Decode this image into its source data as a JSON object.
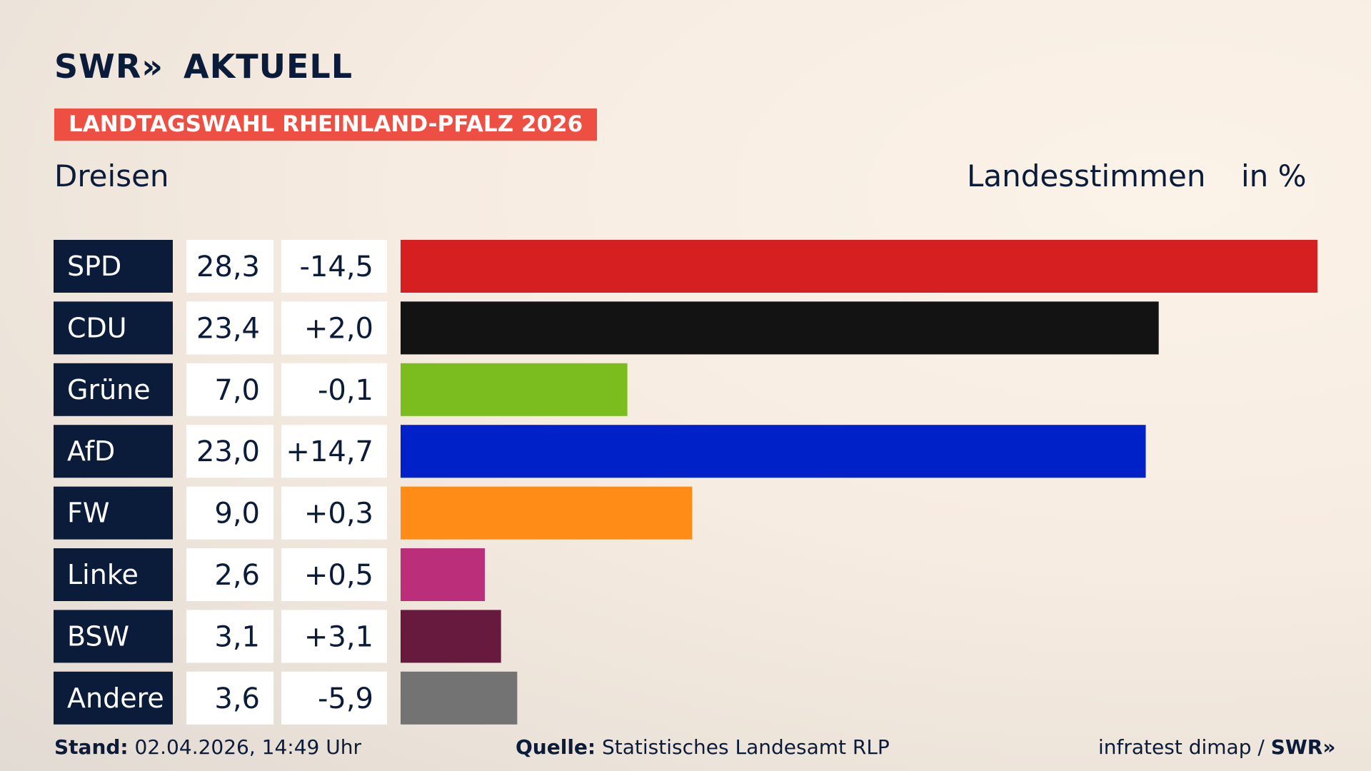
{
  "header": {
    "logo": "SWR",
    "logo_chevrons": "»",
    "brand": "AKTUELL",
    "banner": "LANDTAGSWAHL RHEINLAND-PFALZ 2026",
    "region": "Dreisen",
    "metric": "Landesstimmen",
    "unit": "in %"
  },
  "footer": {
    "stand_label": "Stand:",
    "stand_value": "02.04.2026, 14:49 Uhr",
    "quelle_label": "Quelle:",
    "quelle_value": "Statistisches Landesamt RLP",
    "credit": "infratest dimap /",
    "credit_logo": "SWR",
    "credit_chevrons": "»"
  },
  "chart_data": {
    "type": "bar",
    "orientation": "horizontal",
    "categories": [
      "SPD",
      "CDU",
      "Grüne",
      "AfD",
      "FW",
      "Linke",
      "BSW",
      "Andere"
    ],
    "values": [
      28.3,
      23.4,
      7.0,
      23.0,
      9.0,
      2.6,
      3.1,
      3.6
    ],
    "value_labels": [
      "28,3",
      "23,4",
      "7,0",
      "23,0",
      "9,0",
      "2,6",
      "3,1",
      "3,6"
    ],
    "change_labels": [
      "-14,5",
      "+2,0",
      "-0,1",
      "+14,7",
      "+0,3",
      "+0,5",
      "+3,1",
      "-5,9"
    ],
    "colors": [
      "#d61f20",
      "#131313",
      "#7bbd1f",
      "#0021c8",
      "#fe8c16",
      "#bb2e7a",
      "#671a3e",
      "#737373"
    ],
    "xlim": [
      0,
      28.3
    ],
    "grid": false,
    "legend": "none"
  }
}
